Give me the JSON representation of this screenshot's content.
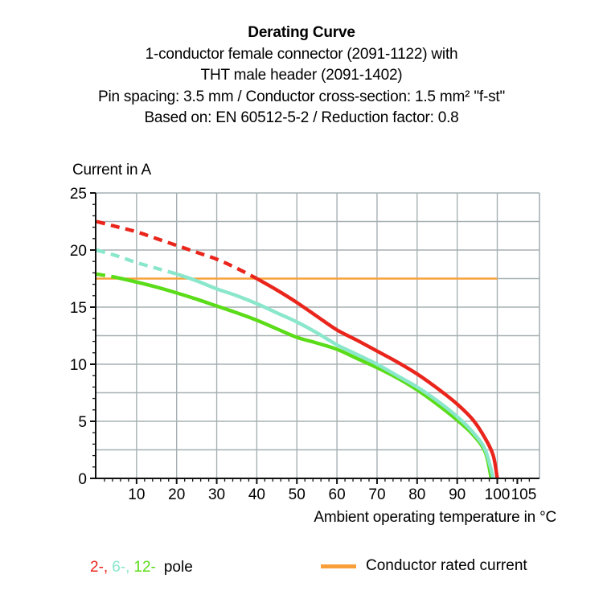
{
  "header": {
    "title": "Derating Curve",
    "subtitle_lines": [
      "1-conductor female connector (2091-1122) with",
      "THT male header (2091-1402)",
      "Pin spacing: 3.5 mm / Conductor cross-section: 1.5 mm² \"f-st\"",
      "Based on: EN 60512-5-2 / Reduction factor: 0.8"
    ]
  },
  "chart_data": {
    "type": "line",
    "y_axis_title": "Current in A",
    "x_axis_title": "Ambient operating temperature in °C",
    "xlim": [
      0,
      110.5
    ],
    "ylim": [
      0,
      25
    ],
    "x_ticks": [
      10,
      20,
      30,
      40,
      50,
      60,
      70,
      80,
      90,
      100,
      105
    ],
    "y_ticks": [
      0,
      5,
      10,
      15,
      20,
      25
    ],
    "x_minor_step": 2,
    "y_minor_step": 1,
    "x_gridlines": [
      10,
      20,
      30,
      40,
      50,
      60,
      70,
      80,
      90,
      100
    ],
    "y_gridlines": [
      2.5,
      5,
      7.5,
      10,
      12.5,
      15,
      17.5,
      20,
      22.5
    ],
    "grid": true,
    "legend_position": "bottom",
    "series": [
      {
        "name": "12-pole",
        "color": "#5bdc18",
        "dash_until": 5,
        "points": [
          [
            0,
            17.9
          ],
          [
            5,
            17.6
          ],
          [
            10,
            17.2
          ],
          [
            15,
            16.75
          ],
          [
            20,
            16.25
          ],
          [
            25,
            15.7
          ],
          [
            30,
            15.1
          ],
          [
            35,
            14.5
          ],
          [
            40,
            13.85
          ],
          [
            45,
            13.1
          ],
          [
            50,
            12.35
          ],
          [
            55,
            11.85
          ],
          [
            60,
            11.3
          ],
          [
            65,
            10.5
          ],
          [
            70,
            9.7
          ],
          [
            75,
            8.8
          ],
          [
            80,
            7.75
          ],
          [
            85,
            6.5
          ],
          [
            90,
            5.1
          ],
          [
            94,
            3.8
          ],
          [
            97,
            2.3
          ],
          [
            98.5,
            0
          ]
        ]
      },
      {
        "name": "6-pole",
        "color": "#8ae7cb",
        "dash_until": 20,
        "points": [
          [
            0,
            20
          ],
          [
            5,
            19.5
          ],
          [
            10,
            18.9
          ],
          [
            15,
            18.4
          ],
          [
            20,
            17.9
          ],
          [
            25,
            17.3
          ],
          [
            30,
            16.6
          ],
          [
            35,
            16.0
          ],
          [
            40,
            15.3
          ],
          [
            45,
            14.5
          ],
          [
            50,
            13.7
          ],
          [
            55,
            12.75
          ],
          [
            60,
            11.7
          ],
          [
            65,
            10.85
          ],
          [
            70,
            10.0
          ],
          [
            75,
            9.0
          ],
          [
            80,
            8.0
          ],
          [
            85,
            6.8
          ],
          [
            90,
            5.4
          ],
          [
            94,
            4.0
          ],
          [
            97,
            2.5
          ],
          [
            99,
            0
          ]
        ]
      },
      {
        "name": "2-pole",
        "color": "#e9251c",
        "dash_until": 40,
        "points": [
          [
            0,
            22.5
          ],
          [
            5,
            22.05
          ],
          [
            10,
            21.6
          ],
          [
            15,
            21.0
          ],
          [
            20,
            20.4
          ],
          [
            25,
            19.8
          ],
          [
            30,
            19.2
          ],
          [
            35,
            18.4
          ],
          [
            40,
            17.5
          ],
          [
            45,
            16.5
          ],
          [
            50,
            15.4
          ],
          [
            55,
            14.2
          ],
          [
            60,
            13.0
          ],
          [
            65,
            12.1
          ],
          [
            70,
            11.15
          ],
          [
            75,
            10.2
          ],
          [
            80,
            9.15
          ],
          [
            85,
            7.9
          ],
          [
            90,
            6.5
          ],
          [
            94,
            5.1
          ],
          [
            97,
            3.5
          ],
          [
            99,
            2.0
          ],
          [
            100,
            0
          ]
        ]
      }
    ],
    "rated_current_line": {
      "value": 17.5,
      "x_start": 0,
      "x_end": 100,
      "color": "#f7a03a"
    }
  },
  "legend": {
    "poles": [
      {
        "label": "2-,",
        "color": "#e9251c"
      },
      {
        "label": "6-,",
        "color": "#8ae7cb"
      },
      {
        "label": "12-",
        "color": "#5bdc18"
      }
    ],
    "pole_suffix": "pole",
    "rated_label": "Conductor rated current"
  },
  "colors": {
    "grid": "#a6b0b2",
    "axis": "#111111",
    "background": "#ffffff"
  }
}
